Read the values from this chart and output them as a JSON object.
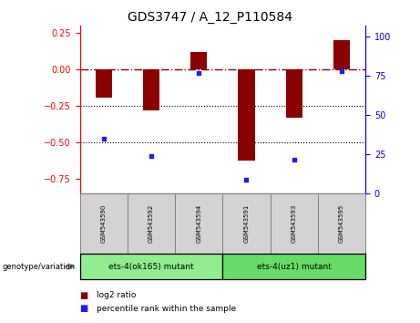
{
  "title": "GDS3747 / A_12_P110584",
  "samples": [
    "GSM543590",
    "GSM543592",
    "GSM543594",
    "GSM543591",
    "GSM543593",
    "GSM543595"
  ],
  "log2_ratios": [
    -0.19,
    -0.28,
    0.12,
    -0.62,
    -0.33,
    0.2
  ],
  "percentile_ranks": [
    35,
    24,
    77,
    9,
    22,
    78
  ],
  "groups": [
    {
      "label": "ets-4(ok165) mutant",
      "indices": [
        0,
        1,
        2
      ],
      "color": "#90EE90"
    },
    {
      "label": "ets-4(uz1) mutant",
      "indices": [
        3,
        4,
        5
      ],
      "color": "#66DD66"
    }
  ],
  "bar_color": "#8B0000",
  "dot_color": "#1C1CFF",
  "ylim_left": [
    -0.85,
    0.3
  ],
  "ylim_right": [
    0,
    107
  ],
  "yticks_left": [
    -0.75,
    -0.5,
    -0.25,
    0,
    0.25
  ],
  "yticks_right": [
    0,
    25,
    50,
    75,
    100
  ],
  "dotted_lines": [
    -0.25,
    -0.5
  ],
  "legend_log2_label": "log2 ratio",
  "legend_percentile_label": "percentile rank within the sample",
  "genotype_label": "genotype/variation",
  "bar_width": 0.35,
  "title_fontsize": 10,
  "label_fontsize": 6,
  "tick_fontsize": 7
}
